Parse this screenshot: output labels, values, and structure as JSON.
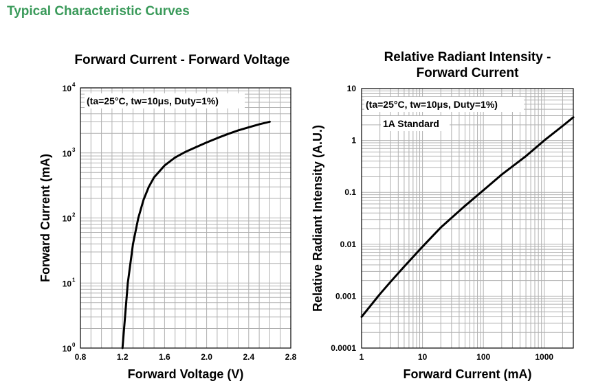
{
  "page": {
    "section_title": "Typical Characteristic Curves"
  },
  "chart_data": [
    {
      "type": "line",
      "title": "Forward Current - Forward Voltage",
      "xlabel": "Forward Voltage (V)",
      "ylabel": "Forward Current (mA)",
      "xlim": [
        0.8,
        2.8
      ],
      "ylim": [
        1,
        10000
      ],
      "yscale": "log",
      "grid": true,
      "annotation": "(ta=25°C, tw=10μs, Duty=1%)",
      "xticks": [
        "0.8",
        "1.2",
        "1.6",
        "2.0",
        "2.4",
        "2.8"
      ],
      "yticks": [
        {
          "base": "10",
          "exp": "0"
        },
        {
          "base": "10",
          "exp": "1"
        },
        {
          "base": "10",
          "exp": "2"
        },
        {
          "base": "10",
          "exp": "3"
        },
        {
          "base": "10",
          "exp": "4"
        }
      ],
      "series": [
        {
          "x": [
            1.2,
            1.25,
            1.3,
            1.35,
            1.4,
            1.45,
            1.5,
            1.6,
            1.7,
            1.8,
            1.9,
            2.0,
            2.1,
            2.2,
            2.3,
            2.4,
            2.5,
            2.6
          ],
          "y": [
            1,
            10,
            40,
            100,
            190,
            300,
            420,
            640,
            850,
            1040,
            1230,
            1450,
            1690,
            1950,
            2220,
            2480,
            2750,
            3020
          ]
        }
      ]
    },
    {
      "type": "line",
      "title": "Relative Radiant Intensity - Forward Current",
      "xlabel": "Forward Current (mA)",
      "ylabel": "Relative Radiant Intensity (A.U.)",
      "xlim": [
        1,
        3000
      ],
      "ylim": [
        0.0001,
        10
      ],
      "xscale": "log",
      "yscale": "log",
      "grid": true,
      "annotations": [
        "(ta=25°C, tw=10μs, Duty=1%)",
        "1A Standard"
      ],
      "xticks": [
        "1",
        "10",
        "100",
        "1000"
      ],
      "yticks": [
        "0.0001",
        "0.001",
        "0.01",
        "0.1",
        "1",
        "10"
      ],
      "series": [
        {
          "x": [
            1,
            2,
            3,
            5,
            10,
            20,
            50,
            100,
            200,
            500,
            1000,
            2000,
            3000
          ],
          "y": [
            0.0004,
            0.0011,
            0.0019,
            0.0037,
            0.009,
            0.021,
            0.055,
            0.11,
            0.22,
            0.5,
            1.0,
            1.9,
            2.8
          ]
        }
      ]
    }
  ]
}
